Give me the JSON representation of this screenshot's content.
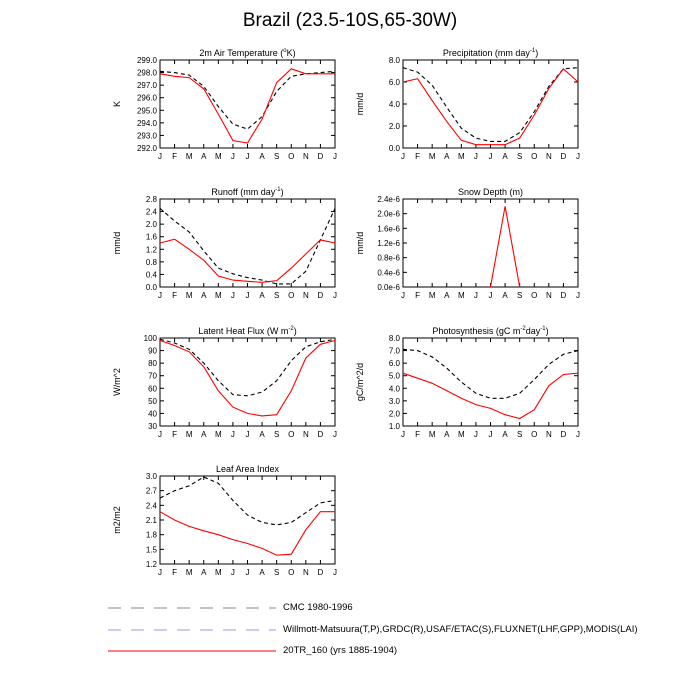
{
  "title": "Brazil (23.5-10S,65-30W)",
  "months": [
    "J",
    "F",
    "M",
    "A",
    "M",
    "J",
    "J",
    "A",
    "S",
    "O",
    "N",
    "D",
    "J"
  ],
  "colors": {
    "obs": "#000000",
    "model": "#ff0000",
    "legend_dash_1": "#888888",
    "legend_dash_2": "#9999dd"
  },
  "legend": [
    {
      "label": "CMC 1980-1996",
      "style": "dashed",
      "color": "#888888"
    },
    {
      "label": "Willmott-Matsuura(T,P),GRDC(R),USAF/ETAC(S),FLUXNET(LHF,GPP),MODIS(LAI)",
      "style": "dashed",
      "color": "#9999dd"
    },
    {
      "label": "20TR_160 (yrs 1885-1904)",
      "style": "solid",
      "color": "#ff0000"
    }
  ],
  "chart_data": [
    {
      "id": "air-temp",
      "type": "line",
      "title": "2m Air Temperature (",
      "title_sup": "o",
      "title_post": "K)",
      "ylabel": "K",
      "ylim": [
        292.0,
        299.0
      ],
      "yticks": [
        "292.0",
        "293.0",
        "294.0",
        "295.0",
        "296.0",
        "297.0",
        "298.0",
        "299.0"
      ],
      "series": [
        {
          "name": "obs",
          "values": [
            298.1,
            298.0,
            297.8,
            296.9,
            295.3,
            293.9,
            293.5,
            294.5,
            296.5,
            297.7,
            297.9,
            298.0,
            298.1
          ]
        },
        {
          "name": "model",
          "values": [
            297.9,
            297.7,
            297.6,
            296.7,
            294.7,
            292.6,
            292.4,
            294.3,
            297.2,
            298.3,
            297.9,
            297.9,
            297.9
          ]
        }
      ]
    },
    {
      "id": "precip",
      "type": "line",
      "title": "Precipitation (mm day",
      "title_sup": "-1",
      "title_post": ")",
      "ylabel": "mm/d",
      "ylim": [
        0.0,
        8.0
      ],
      "yticks": [
        "0.0",
        "2.0",
        "4.0",
        "6.0",
        "8.0"
      ],
      "series": [
        {
          "name": "obs",
          "values": [
            7.3,
            6.9,
            5.7,
            3.7,
            1.8,
            0.9,
            0.6,
            0.6,
            1.4,
            3.3,
            5.6,
            7.2,
            7.3
          ]
        },
        {
          "name": "model",
          "values": [
            6.0,
            6.3,
            4.3,
            2.4,
            0.7,
            0.3,
            0.3,
            0.3,
            0.9,
            3.0,
            5.4,
            7.2,
            6.0
          ]
        }
      ]
    },
    {
      "id": "runoff",
      "type": "line",
      "title": "Runoff (mm day",
      "title_sup": "-1",
      "title_post": ")",
      "ylabel": "mm/d",
      "ylim": [
        0.0,
        2.8
      ],
      "yticks": [
        "0.0",
        "0.4",
        "0.8",
        "1.2",
        "1.6",
        "2.0",
        "2.4",
        "2.8"
      ],
      "series": [
        {
          "name": "obs",
          "values": [
            2.5,
            2.1,
            1.75,
            1.15,
            0.6,
            0.42,
            0.3,
            0.22,
            0.1,
            0.1,
            0.5,
            1.5,
            2.5
          ]
        },
        {
          "name": "model",
          "values": [
            1.4,
            1.52,
            1.2,
            0.85,
            0.35,
            0.22,
            0.18,
            0.15,
            0.2,
            0.6,
            1.05,
            1.5,
            1.4
          ]
        }
      ]
    },
    {
      "id": "snow",
      "type": "line",
      "title": "Snow Depth (m)",
      "title_sup": "",
      "title_post": "",
      "ylabel": "mm/d",
      "ylim": [
        0.0,
        2.4e-06
      ],
      "yticks": [
        "0.0e-6",
        "0.4e-6",
        "0.8e-6",
        "1.2e-6",
        "1.6e-6",
        "2.0e-6",
        "2.4e-6"
      ],
      "series": [
        {
          "name": "model",
          "values": [
            0,
            0,
            0,
            0,
            0,
            0,
            0,
            2.2e-06,
            0,
            0,
            0,
            0,
            0
          ],
          "visible_from": 6,
          "visible_to": 8
        }
      ]
    },
    {
      "id": "latent",
      "type": "line",
      "title": "Latent Heat Flux (W m",
      "title_sup": "-2",
      "title_post": ")",
      "ylabel": "W/m^2",
      "ylim": [
        30,
        100
      ],
      "yticks": [
        "30",
        "40",
        "50",
        "60",
        "70",
        "80",
        "90",
        "100"
      ],
      "series": [
        {
          "name": "obs",
          "values": [
            99,
            96,
            91,
            80,
            66,
            55,
            54,
            57,
            66,
            82,
            93,
            97,
            99
          ]
        },
        {
          "name": "model",
          "values": [
            98,
            94,
            89,
            77,
            58,
            45,
            40,
            38,
            39,
            58,
            84,
            95,
            98
          ]
        }
      ]
    },
    {
      "id": "photo",
      "type": "line",
      "title": "Photosynthesis (gC m",
      "title_sup": "-2",
      "title_post": "day",
      "title_sup2": "-1",
      "title_post2": ")",
      "ylabel": "gC/m^2/d",
      "ylim": [
        1.0,
        8.0
      ],
      "yticks": [
        "1.0",
        "2.0",
        "3.0",
        "4.0",
        "5.0",
        "6.0",
        "7.0",
        "8.0"
      ],
      "series": [
        {
          "name": "obs",
          "values": [
            7.1,
            7.0,
            6.5,
            5.6,
            4.5,
            3.6,
            3.2,
            3.2,
            3.6,
            4.7,
            5.9,
            6.7,
            7.0
          ]
        },
        {
          "name": "model",
          "values": [
            5.2,
            4.8,
            4.4,
            3.8,
            3.2,
            2.7,
            2.4,
            1.9,
            1.6,
            2.3,
            4.2,
            5.1,
            5.2
          ]
        }
      ]
    },
    {
      "id": "lai",
      "type": "line",
      "title": "Leaf Area Index",
      "title_sup": "",
      "title_post": "",
      "ylabel": "m2/m2",
      "ylim": [
        1.2,
        3.0
      ],
      "yticks": [
        "1.2",
        "1.5",
        "1.8",
        "2.1",
        "2.4",
        "2.7",
        "3.0"
      ],
      "series": [
        {
          "name": "obs",
          "values": [
            2.55,
            2.7,
            2.8,
            2.98,
            2.85,
            2.5,
            2.2,
            2.05,
            2.0,
            2.05,
            2.25,
            2.45,
            2.5
          ]
        },
        {
          "name": "model",
          "values": [
            2.27,
            2.1,
            1.97,
            1.88,
            1.8,
            1.7,
            1.62,
            1.52,
            1.38,
            1.4,
            1.9,
            2.27,
            2.27
          ]
        }
      ]
    }
  ]
}
